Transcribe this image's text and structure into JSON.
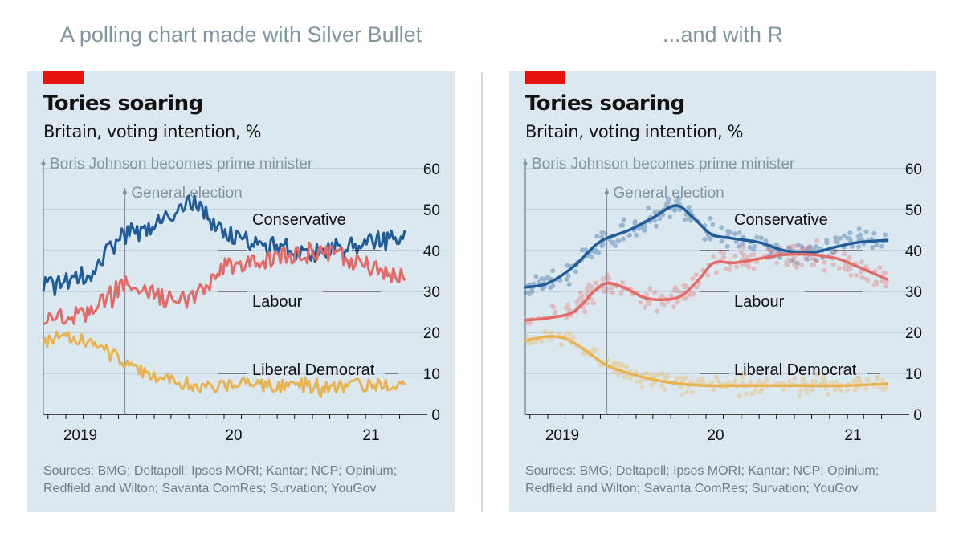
{
  "headings": {
    "left": "A polling chart made with Silver Bullet",
    "right": "...and with R"
  },
  "colors": {
    "background": "#ffffff",
    "panel": "#dce8f0",
    "gridline": "#a9bac6",
    "accent_tag": "#e3120b",
    "conservative": "#1f5c99",
    "labour": "#e36b67",
    "libdem": "#e8b350",
    "annotation": "#7f95a0",
    "source_text": "#6e7e88"
  },
  "chart_data": [
    {
      "type": "line",
      "style": "raw-poll-lines",
      "title": "Tories soaring",
      "subtitle": "Britain, voting intention, %",
      "source_lines": [
        "Sources: BMG; Deltapoll; Ipsos MORI; Kantar; NCP; Opinium;",
        "Redfield and Wilton; Savanta ComRes; Survation; YouGov"
      ],
      "x_ticks": [
        "2019",
        "20",
        "21"
      ],
      "y_ticks": [
        0,
        10,
        20,
        30,
        40,
        50,
        60
      ],
      "ylim": [
        0,
        60
      ],
      "y_axis_position": "right",
      "annotations": [
        {
          "label": "Boris Johnson becomes prime minister",
          "date": "2019-07-24"
        },
        {
          "label": "General election",
          "date": "2019-12-12"
        }
      ],
      "series": [
        {
          "name": "Conservative",
          "color": "#1f5c99",
          "points": [
            [
              "2019-07-24",
              31
            ],
            [
              "2019-08-15",
              32
            ],
            [
              "2019-09-15",
              33
            ],
            [
              "2019-10-15",
              35
            ],
            [
              "2019-11-15",
              40
            ],
            [
              "2019-12-12",
              44
            ],
            [
              "2020-01-15",
              45
            ],
            [
              "2020-02-15",
              47
            ],
            [
              "2020-03-15",
              50
            ],
            [
              "2020-04-10",
              52
            ],
            [
              "2020-05-05",
              48
            ],
            [
              "2020-06-01",
              44
            ],
            [
              "2020-07-01",
              43
            ],
            [
              "2020-08-01",
              42
            ],
            [
              "2020-09-01",
              41
            ],
            [
              "2020-10-01",
              40
            ],
            [
              "2020-11-01",
              39
            ],
            [
              "2020-12-01",
              40
            ],
            [
              "2021-01-01",
              41
            ],
            [
              "2021-02-01",
              42
            ],
            [
              "2021-03-01",
              42.5
            ],
            [
              "2021-04-10",
              43
            ]
          ]
        },
        {
          "name": "Labour",
          "color": "#e36b67",
          "points": [
            [
              "2019-07-24",
              23
            ],
            [
              "2019-08-15",
              23.5
            ],
            [
              "2019-09-15",
              24
            ],
            [
              "2019-10-15",
              25
            ],
            [
              "2019-11-15",
              29
            ],
            [
              "2019-12-12",
              32
            ],
            [
              "2020-01-15",
              30
            ],
            [
              "2020-02-15",
              28.5
            ],
            [
              "2020-03-15",
              28
            ],
            [
              "2020-04-10",
              28.5
            ],
            [
              "2020-05-05",
              31
            ],
            [
              "2020-06-01",
              36
            ],
            [
              "2020-07-01",
              37
            ],
            [
              "2020-08-01",
              37
            ],
            [
              "2020-09-01",
              38
            ],
            [
              "2020-10-01",
              39
            ],
            [
              "2020-11-01",
              39
            ],
            [
              "2020-12-01",
              39
            ],
            [
              "2021-01-01",
              38
            ],
            [
              "2021-02-01",
              36.5
            ],
            [
              "2021-03-01",
              35
            ],
            [
              "2021-04-10",
              33
            ]
          ]
        },
        {
          "name": "Liberal Democrat",
          "color": "#e8b350",
          "points": [
            [
              "2019-07-24",
              18
            ],
            [
              "2019-08-15",
              18.5
            ],
            [
              "2019-09-15",
              19
            ],
            [
              "2019-10-15",
              18
            ],
            [
              "2019-11-15",
              15
            ],
            [
              "2019-12-12",
              12
            ],
            [
              "2020-01-15",
              10
            ],
            [
              "2020-02-15",
              9
            ],
            [
              "2020-03-15",
              8
            ],
            [
              "2020-04-10",
              7
            ],
            [
              "2020-05-05",
              7
            ],
            [
              "2020-06-01",
              7
            ],
            [
              "2020-07-01",
              7
            ],
            [
              "2020-08-01",
              7
            ],
            [
              "2020-09-01",
              7
            ],
            [
              "2020-10-01",
              7
            ],
            [
              "2020-11-01",
              7
            ],
            [
              "2020-12-01",
              7
            ],
            [
              "2021-01-01",
              7
            ],
            [
              "2021-02-01",
              7
            ],
            [
              "2021-03-01",
              7
            ],
            [
              "2021-04-10",
              7.5
            ]
          ]
        }
      ]
    },
    {
      "type": "scatter",
      "style": "poll-dots-with-smoothed-trend",
      "title": "Tories soaring",
      "subtitle": "Britain, voting intention, %",
      "source_lines": [
        "Sources: BMG; Deltapoll; Ipsos MORI; Kantar; NCP; Opinium;",
        "Redfield and Wilton; Savanta ComRes; Survation; YouGov"
      ],
      "x_ticks": [
        "2019",
        "20",
        "21"
      ],
      "y_ticks": [
        0,
        10,
        20,
        30,
        40,
        50,
        60
      ],
      "ylim": [
        0,
        60
      ],
      "y_axis_position": "right",
      "annotations": [
        {
          "label": "Boris Johnson becomes prime minister",
          "date": "2019-07-24"
        },
        {
          "label": "General election",
          "date": "2019-12-12"
        }
      ],
      "series": [
        {
          "name": "Conservative",
          "color": "#1f5c99",
          "trend": [
            [
              "2019-07-24",
              31
            ],
            [
              "2019-09-01",
              32
            ],
            [
              "2019-10-15",
              36
            ],
            [
              "2019-11-20",
              41
            ],
            [
              "2019-12-12",
              43
            ],
            [
              "2020-01-20",
              45
            ],
            [
              "2020-03-01",
              48
            ],
            [
              "2020-04-10",
              51
            ],
            [
              "2020-05-10",
              48
            ],
            [
              "2020-06-10",
              44
            ],
            [
              "2020-07-15",
              43
            ],
            [
              "2020-09-01",
              42
            ],
            [
              "2020-10-15",
              40
            ],
            [
              "2020-12-01",
              39.5
            ],
            [
              "2021-01-15",
              41
            ],
            [
              "2021-02-20",
              42
            ],
            [
              "2021-04-10",
              42.5
            ]
          ]
        },
        {
          "name": "Labour",
          "color": "#e36b67",
          "trend": [
            [
              "2019-07-24",
              23
            ],
            [
              "2019-09-01",
              23.5
            ],
            [
              "2019-10-15",
              25
            ],
            [
              "2019-11-20",
              30
            ],
            [
              "2019-12-12",
              32
            ],
            [
              "2020-01-10",
              31
            ],
            [
              "2020-02-15",
              28.5
            ],
            [
              "2020-03-20",
              28
            ],
            [
              "2020-04-20",
              29
            ],
            [
              "2020-05-20",
              33
            ],
            [
              "2020-06-15",
              37
            ],
            [
              "2020-07-20",
              37
            ],
            [
              "2020-09-01",
              38
            ],
            [
              "2020-10-15",
              39
            ],
            [
              "2020-12-01",
              39
            ],
            [
              "2021-01-15",
              38
            ],
            [
              "2021-02-20",
              36
            ],
            [
              "2021-04-10",
              33
            ]
          ]
        },
        {
          "name": "Liberal Democrat",
          "color": "#e8b350",
          "trend": [
            [
              "2019-07-24",
              18
            ],
            [
              "2019-09-01",
              19
            ],
            [
              "2019-10-01",
              18.5
            ],
            [
              "2019-11-01",
              16
            ],
            [
              "2019-12-12",
              12
            ],
            [
              "2020-01-20",
              10
            ],
            [
              "2020-03-01",
              8.5
            ],
            [
              "2020-04-15",
              7.5
            ],
            [
              "2020-06-01",
              7
            ],
            [
              "2020-08-01",
              7
            ],
            [
              "2020-10-01",
              7
            ],
            [
              "2020-12-01",
              7
            ],
            [
              "2021-02-01",
              7
            ],
            [
              "2021-04-10",
              7.5
            ]
          ]
        }
      ]
    }
  ]
}
